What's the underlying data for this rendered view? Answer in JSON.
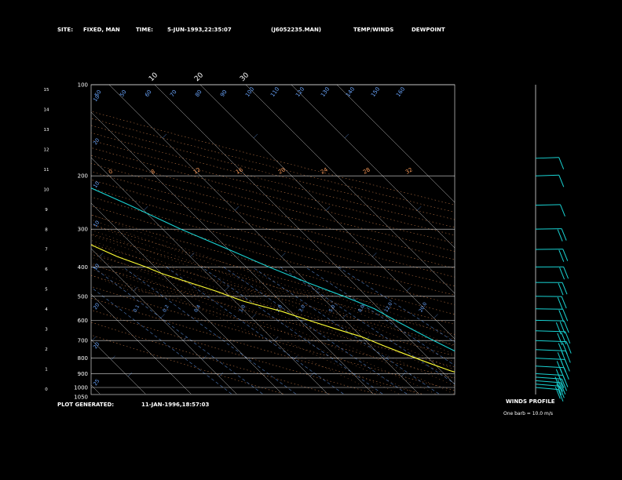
{
  "header": {
    "site_label": "SITE:",
    "site_value": "FIXED, MAN",
    "time_label": "TIME:",
    "time_value": "5-JUN-1993,22:35:07",
    "file_name": "(J6052235.MAN)",
    "legend_temp": "TEMP/WINDS",
    "legend_dew": "DEWPOINT"
  },
  "footer": {
    "generated_label": "PLOT GENERATED:",
    "generated_value": "11-JAN-1996,18:57:03",
    "winds_title": "WINDS PROFILE",
    "winds_note": "One barb = 10.0 m/s"
  },
  "colors": {
    "temp": "#19d3d3",
    "dew": "#ffff33",
    "isotherm": "#ffffff",
    "dry_adiabat": "#ff9d5a",
    "moist_adiabat": "#ff9d5a",
    "mixing_ratio": "#6aa6ff",
    "isobar": "#ffffff",
    "legend_temp": "#19d3d3",
    "legend_dew": "#ffff33"
  },
  "chart_data": {
    "type": "line",
    "title": "",
    "ylabel": "",
    "xlabel": "",
    "pressure_labels": [
      "100",
      "200",
      "300",
      "400",
      "500",
      "600",
      "700",
      "800",
      "900",
      "1000",
      "1050"
    ],
    "height_km_labels": [
      "15",
      "14",
      "13",
      "12",
      "11",
      "10",
      "9",
      "8",
      "7",
      "6",
      "5",
      "4",
      "3",
      "2",
      "1",
      "0"
    ],
    "isotherm_labels": [
      "-110",
      "-100",
      "-90",
      "-80",
      "-70",
      "-60",
      "-50",
      "-40",
      "-30",
      "-20",
      "-10",
      "0",
      "10",
      "20",
      "30"
    ],
    "mixing_ratio_labels": [
      "0.1",
      "0.2",
      "0.4",
      "1.0",
      "2.0",
      "3.0",
      "5.0",
      "8.0",
      "12.0",
      "20.0"
    ],
    "dry_adiabat_labels": [
      "0",
      "8",
      "12",
      "16",
      "20",
      "24",
      "28",
      "32"
    ],
    "theta_labels": [
      "50",
      "50",
      "60",
      "70",
      "80",
      "90",
      "100",
      "110",
      "120",
      "130",
      "140",
      "150",
      "160"
    ],
    "series": [
      {
        "name": "TEMP/WINDS",
        "x_celsius": [
          31,
          28,
          26,
          24,
          21,
          19,
          17,
          15,
          13,
          11,
          9,
          5,
          0,
          -5,
          -10,
          -16,
          -22,
          -30,
          -39,
          -47,
          -53,
          -56,
          -57,
          -57,
          -56
        ],
        "pressure_hpa": [
          1000,
          970,
          940,
          900,
          850,
          800,
          750,
          700,
          650,
          600,
          550,
          500,
          450,
          400,
          350,
          300,
          250,
          200,
          170,
          150,
          130,
          120,
          110,
          104,
          100
        ]
      },
      {
        "name": "DEWPOINT",
        "x_celsius": [
          22,
          20,
          18,
          15,
          12,
          9,
          6,
          3,
          0,
          -4,
          -8,
          -12,
          -18,
          -22,
          -30,
          -32,
          -36,
          -40,
          -48,
          -56,
          -64,
          -72,
          -76,
          -78,
          -79,
          -80
        ],
        "pressure_hpa": [
          1000,
          985,
          960,
          920,
          880,
          830,
          780,
          730,
          680,
          640,
          600,
          560,
          520,
          480,
          420,
          400,
          370,
          330,
          300,
          260,
          220,
          190,
          160,
          130,
          110,
          100
        ]
      }
    ],
    "wind_profile": {
      "speed_ms": [
        12,
        15,
        18,
        22,
        25,
        28,
        30,
        32,
        34,
        30,
        26,
        22,
        18,
        20,
        24,
        22,
        18,
        14,
        10,
        10
      ],
      "pressure_hpa": [
        1000,
        975,
        950,
        925,
        900,
        850,
        800,
        750,
        700,
        650,
        600,
        550,
        500,
        450,
        400,
        350,
        300,
        250,
        200,
        175
      ]
    }
  }
}
